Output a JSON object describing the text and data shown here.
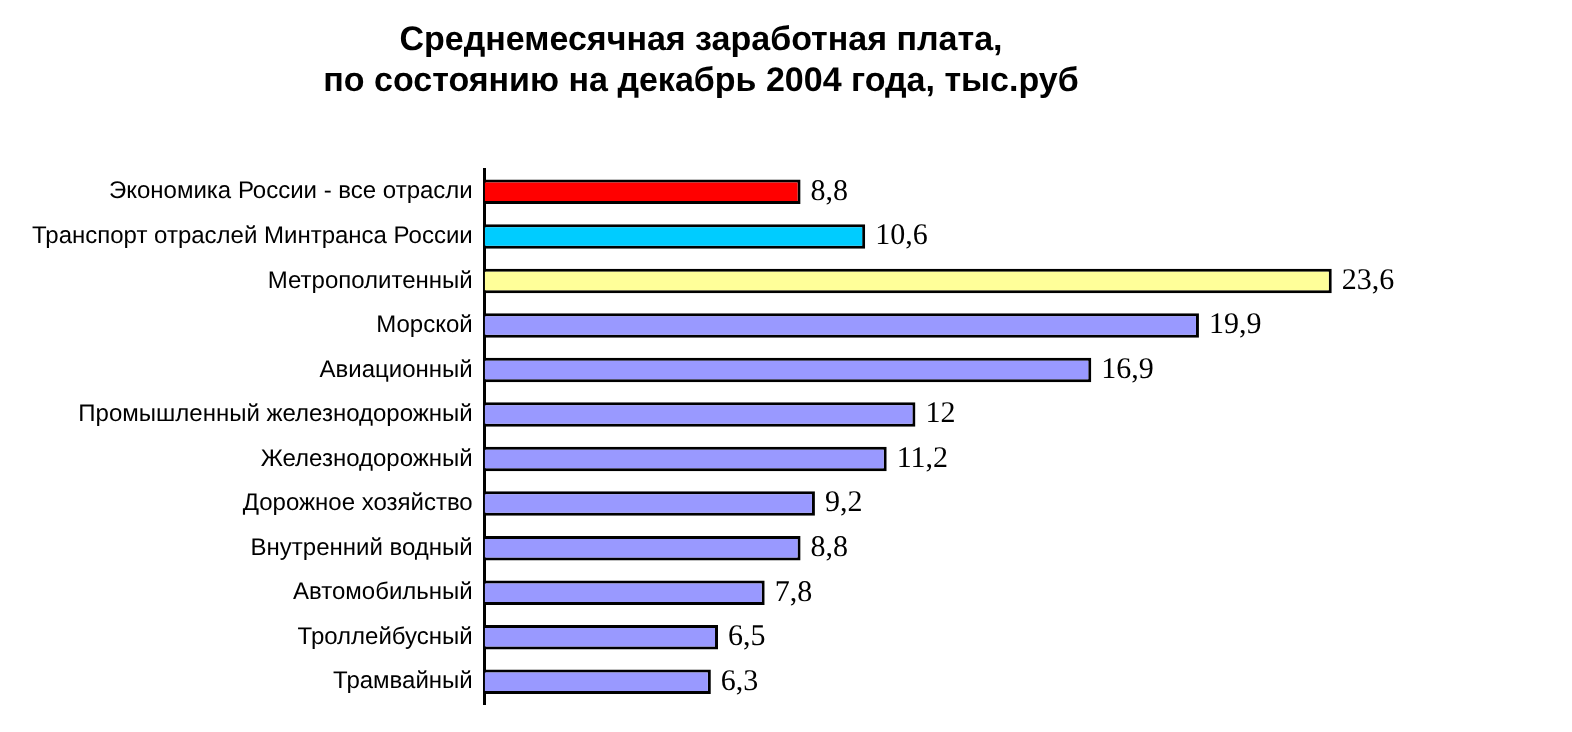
{
  "chart_data": {
    "type": "bar",
    "orientation": "horizontal",
    "title": "Среднемесячная заработная плата,\nпо состоянию на декабрь 2004 года, тыс.руб",
    "categories": [
      "Экономика России - все отрасли",
      "Транспорт отраслей Минтранса России",
      "Метрополитенный",
      "Морской",
      "Авиационный",
      "Промышленный железнодорожный",
      "Железнодорожный",
      "Дорожное хозяйство",
      "Внутренний водный",
      "Автомобильный",
      "Троллейбусный",
      "Трамвайный"
    ],
    "values": [
      8.8,
      10.6,
      23.6,
      19.9,
      16.9,
      12,
      11.2,
      9.2,
      8.8,
      7.8,
      6.5,
      6.3
    ],
    "value_labels": [
      "8,8",
      "10,6",
      "23,6",
      "19,9",
      "16,9",
      "12",
      "11,2",
      "9,2",
      "8,8",
      "7,8",
      "6,5",
      "6,3"
    ],
    "colors": [
      "#ff0000",
      "#00ccff",
      "#ffff99",
      "#9999ff",
      "#9999ff",
      "#9999ff",
      "#9999ff",
      "#9999ff",
      "#9999ff",
      "#9999ff",
      "#9999ff",
      "#9999ff"
    ],
    "legend": false,
    "tick_labels": "y"
  }
}
